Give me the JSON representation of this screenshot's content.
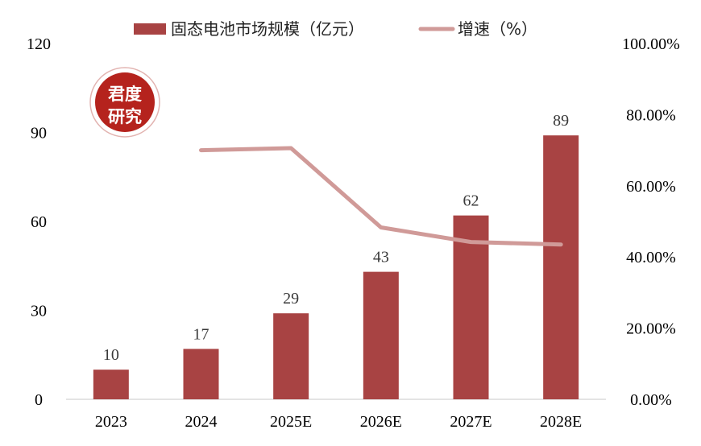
{
  "chart_data": {
    "type": "bar",
    "categories": [
      "2023",
      "2024",
      "2025E",
      "2026E",
      "2027E",
      "2028E"
    ],
    "series": [
      {
        "name": "固态电池市场规模（亿元）",
        "type": "bar",
        "axis": "left",
        "values": [
          10,
          17,
          29,
          43,
          62,
          89
        ],
        "color": "#a84343"
      },
      {
        "name": "增速（%）",
        "type": "line",
        "axis": "right",
        "values": [
          null,
          70.0,
          70.6,
          48.3,
          44.2,
          43.5
        ],
        "color": "#d09a98"
      }
    ],
    "y_left": {
      "ylim": [
        0,
        120
      ],
      "ticks": [
        "0",
        "30",
        "60",
        "90",
        "120"
      ]
    },
    "y_right": {
      "ylim": [
        0,
        100
      ],
      "ticks": [
        "0.00%",
        "20.00%",
        "40.00%",
        "60.00%",
        "80.00%",
        "100.00%"
      ]
    },
    "legend_position": "top-center",
    "grid": false
  },
  "stamp": {
    "line1": "君度",
    "line2": "研究",
    "color": "#b5231d"
  }
}
